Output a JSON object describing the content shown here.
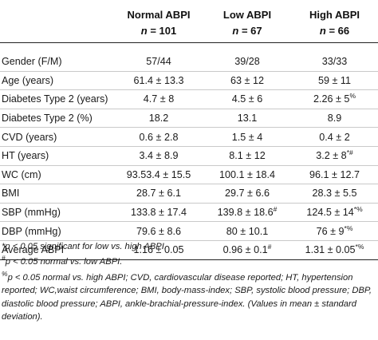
{
  "header": {
    "groups": [
      "",
      "Normal ABPI",
      "Low ABPI",
      "High ABPI"
    ],
    "n_label": "n",
    "n_values": [
      "= 101",
      "= 67",
      "= 66"
    ]
  },
  "rows": [
    {
      "label": "Gender (F/M)",
      "normal": "57/44",
      "low": "39/28",
      "high": "33/33",
      "sup_normal": "",
      "sup_low": "",
      "sup_high": ""
    },
    {
      "label": "Age (years)",
      "normal": "61.4 ± 13.3",
      "low": "63 ± 12",
      "high": "59 ± 11",
      "sup_normal": "",
      "sup_low": "",
      "sup_high": ""
    },
    {
      "label": "Diabetes Type 2 (years)",
      "normal": "4.7 ± 8",
      "low": "4.5 ± 6",
      "high": "2.26 ± 5",
      "sup_normal": "",
      "sup_low": "",
      "sup_high": "%"
    },
    {
      "label": "Diabetes Type 2 (%)",
      "normal": "18.2",
      "low": "13.1",
      "high": "8.9",
      "sup_normal": "",
      "sup_low": "",
      "sup_high": ""
    },
    {
      "label": "CVD (years)",
      "normal": "0.6 ± 2.8",
      "low": "1.5 ± 4",
      "high": "0.4 ± 2",
      "sup_normal": "",
      "sup_low": "",
      "sup_high": ""
    },
    {
      "label": "HT (years)",
      "normal": "3.4 ± 8.9",
      "low": "8.1 ± 12",
      "high": "3.2 ± 8",
      "sup_normal": "",
      "sup_low": "",
      "sup_high": "*#"
    },
    {
      "label": "WC (cm)",
      "normal": "93.53.4 ± 15.5",
      "low": "100.1 ± 18.4",
      "high": "96.1 ± 12.7",
      "sup_normal": "",
      "sup_low": "",
      "sup_high": ""
    },
    {
      "label": "BMI",
      "normal": "28.7 ± 6.1",
      "low": "29.7 ± 6.6",
      "high": "28.3 ± 5.5",
      "sup_normal": "",
      "sup_low": "",
      "sup_high": ""
    },
    {
      "label": "SBP (mmHg)",
      "normal": "133.8 ± 17.4",
      "low": "139.8 ± 18.6",
      "high": "124.5 ± 14",
      "sup_normal": "",
      "sup_low": "#",
      "sup_high": "*%"
    },
    {
      "label": "DBP (mmHg)",
      "normal": "79.6 ± 8.6",
      "low": "80 ± 10.1",
      "high": "76 ± 9",
      "sup_normal": "",
      "sup_low": "",
      "sup_high": "*%"
    },
    {
      "label": "Average ABPI",
      "normal": "1.16 ± 0.05",
      "low": "0.96 ± 0.1",
      "high": "1.31 ± 0.05",
      "sup_normal": "",
      "sup_low": "#",
      "sup_high": "*%"
    }
  ],
  "footnotes": [
    {
      "mark": "*",
      "text": "p < 0.05 significant for low vs. high ABPI."
    },
    {
      "mark": "#",
      "text": "p < 0.05 normal vs. low ABPI."
    },
    {
      "mark": "%",
      "text": "p < 0.05 normal vs. high ABPI; CVD, cardiovascular disease reported; HT, hypertension reported; WC,waist circumference; BMI, body-mass-index; SBP, systolic blood pressure; DBP, diastolic blood pressure; ABPI, ankle-brachial-pressure-index. (Values in mean ± standard deviation)."
    }
  ]
}
